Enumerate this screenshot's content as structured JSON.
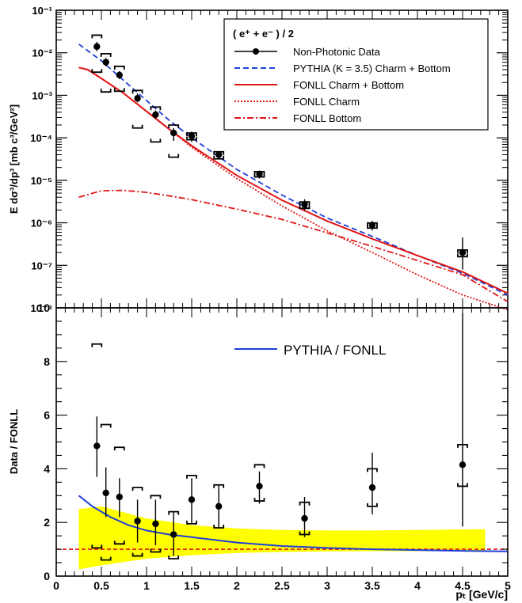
{
  "chart_data": [
    {
      "type": "scatter",
      "title": "",
      "ylabel": "E dσ³/dp³ [mb c³/GeV²]",
      "xlabel": "",
      "xlim": [
        0,
        5
      ],
      "ylim": [
        1e-08,
        0.1
      ],
      "yscale": "log",
      "ytick_labels": [
        "10⁻⁸",
        "10⁻⁷",
        "10⁻⁶",
        "10⁻⁵",
        "10⁻⁴",
        "10⁻³",
        "10⁻²",
        "10⁻¹"
      ],
      "legend": {
        "position": "top-right",
        "header": "( e⁺ + e⁻ ) / 2",
        "entries": [
          {
            "label": "Non-Photonic Data",
            "style": "marker",
            "color": "#000000"
          },
          {
            "label": "PYTHIA (K = 3.5) Charm + Bottom",
            "style": "dashed",
            "color": "#1f3fd9"
          },
          {
            "label": "FONLL Charm + Bottom",
            "style": "solid",
            "color": "#e01515"
          },
          {
            "label": "FONLL Charm",
            "style": "dotted",
            "color": "#e01515"
          },
          {
            "label": "FONLL Bottom",
            "style": "dashdot",
            "color": "#e01515"
          }
        ]
      },
      "series": [
        {
          "name": "Non-Photonic Data",
          "kind": "points",
          "color": "#000000",
          "x": [
            0.45,
            0.55,
            0.7,
            0.9,
            1.1,
            1.3,
            1.5,
            1.8,
            2.25,
            2.75,
            3.5,
            4.5
          ],
          "y": [
            0.014,
            0.006,
            0.003,
            0.00085,
            0.00035,
            0.00013,
            0.00011,
            4e-05,
            1.4e-05,
            2.7e-06,
            8.8e-07,
            2e-07
          ],
          "err_lo": [
            0.011,
            0.0048,
            0.0024,
            0.00068,
            0.00028,
            8.5e-05,
            8e-05,
            3.3e-05,
            1.1e-05,
            1.9e-06,
            6.6e-07,
            8e-08
          ],
          "err_hi": [
            0.018,
            0.0075,
            0.0037,
            0.0011,
            0.00044,
            0.00017,
            0.00014,
            4.8e-05,
            1.7e-05,
            3.6e-06,
            1.1e-06,
            4.5e-07
          ],
          "sys_lo": [
            0.0035,
            0.0012,
            0.00125,
            0.00017,
            8e-05,
            3.5e-05,
            9e-05,
            3.2e-05,
            1.2e-05,
            2.2e-06,
            7.5e-07,
            1.6e-07
          ],
          "sys_hi": [
            0.026,
            0.0095,
            0.0048,
            0.0013,
            0.00053,
            0.0002,
            0.00013,
            4.7e-05,
            1.6e-05,
            3.1e-06,
            9.9e-07,
            2.3e-07
          ]
        },
        {
          "name": "PYTHIA (K = 3.5) Charm + Bottom",
          "kind": "line",
          "dash": "dashed",
          "color": "#1f3fd9",
          "x": [
            0.25,
            0.5,
            0.75,
            1.0,
            1.25,
            1.5,
            2.0,
            2.5,
            3.0,
            3.5,
            4.0,
            4.5,
            5.0
          ],
          "y": [
            0.016,
            0.0065,
            0.0022,
            0.00075,
            0.00026,
            0.0001,
            1.8e-05,
            4.5e-06,
            1.3e-06,
            4.8e-07,
            1.7e-07,
            6.5e-08,
            2e-08
          ]
        },
        {
          "name": "FONLL Charm + Bottom",
          "kind": "line",
          "dash": "solid",
          "color": "#e01515",
          "x": [
            0.25,
            0.35,
            0.5,
            0.75,
            1.0,
            1.25,
            1.5,
            2.0,
            2.5,
            3.0,
            3.5,
            4.0,
            4.5,
            5.0
          ],
          "y": [
            0.0045,
            0.004,
            0.0025,
            0.0011,
            0.00042,
            0.00016,
            6.5e-05,
            1.3e-05,
            3.4e-06,
            1.1e-06,
            4.2e-07,
            1.7e-07,
            7e-08,
            2.2e-08
          ]
        },
        {
          "name": "FONLL Charm",
          "kind": "line",
          "dash": "dotted",
          "color": "#e01515",
          "x": [
            0.25,
            0.35,
            0.5,
            0.75,
            1.0,
            1.25,
            1.5,
            2.0,
            2.5,
            3.0,
            3.5,
            4.0,
            4.5,
            5.0
          ],
          "y": [
            0.0045,
            0.004,
            0.0025,
            0.0011,
            0.00042,
            0.00016,
            6e-05,
            1.1e-05,
            2.5e-06,
            6.5e-07,
            2e-07,
            6e-08,
            2e-08,
            9e-09
          ]
        },
        {
          "name": "FONLL Bottom",
          "kind": "line",
          "dash": "dashdot",
          "color": "#e01515",
          "x": [
            0.25,
            0.5,
            0.75,
            1.0,
            1.25,
            1.5,
            2.0,
            2.5,
            3.0,
            3.5,
            4.0,
            4.5,
            5.0
          ],
          "y": [
            4e-06,
            5.7e-06,
            5.8e-06,
            5.2e-06,
            4.3e-06,
            3.5e-06,
            2.1e-06,
            1.2e-06,
            5.8e-07,
            2.8e-07,
            1.3e-07,
            6e-08,
            1.4e-08
          ]
        }
      ]
    },
    {
      "type": "scatter",
      "title": "",
      "ylabel": "Data / FONLL",
      "xlabel": "pₜ [GeV/c]",
      "xlim": [
        0,
        5
      ],
      "ylim": [
        0,
        10
      ],
      "x_tick_labels": [
        "0",
        "0.5",
        "1",
        "1.5",
        "2",
        "2.5",
        "3",
        "3.5",
        "4",
        "4.5",
        "5"
      ],
      "y_tick_labels": [
        "0",
        "2",
        "4",
        "6",
        "8",
        "10"
      ],
      "legend": {
        "position": "top-center",
        "entries": [
          {
            "label": "PYTHIA / FONLL",
            "style": "solid",
            "color": "#1f3fd9"
          }
        ]
      },
      "reference_line": {
        "y": 1,
        "style": "dashed",
        "color": "#e01515"
      },
      "band": {
        "color": "#ffff00",
        "x": [
          0.25,
          0.5,
          1.0,
          1.5,
          2.0,
          2.5,
          3.0,
          3.5,
          4.0,
          4.5,
          4.75
        ],
        "upper": [
          2.5,
          2.6,
          2.15,
          1.9,
          1.78,
          1.72,
          1.7,
          1.7,
          1.72,
          1.74,
          1.75
        ],
        "lower": [
          0.25,
          0.4,
          0.65,
          0.78,
          0.86,
          0.9,
          0.92,
          0.93,
          0.93,
          0.93,
          0.93
        ]
      },
      "series": [
        {
          "name": "Data / FONLL",
          "kind": "points",
          "color": "#000000",
          "x": [
            0.45,
            0.55,
            0.7,
            0.9,
            1.1,
            1.3,
            1.5,
            1.8,
            2.25,
            2.75,
            3.5,
            4.5
          ],
          "y": [
            4.85,
            3.1,
            2.95,
            2.05,
            1.95,
            1.55,
            2.85,
            2.6,
            3.35,
            2.15,
            3.3,
            4.15
          ],
          "err_lo": [
            3.7,
            2.2,
            2.2,
            1.25,
            1.15,
            0.75,
            1.95,
            1.8,
            2.7,
            1.45,
            2.3,
            1.85
          ],
          "err_hi": [
            5.95,
            4.05,
            3.65,
            2.85,
            2.85,
            2.4,
            3.65,
            3.4,
            3.9,
            2.95,
            4.6,
            9.8
          ],
          "sys_lo": [
            1.05,
            0.6,
            1.2,
            0.75,
            0.9,
            0.65,
            1.95,
            1.8,
            2.8,
            1.55,
            2.6,
            3.35
          ],
          "sys_hi": [
            8.65,
            5.65,
            4.8,
            3.3,
            3.0,
            2.4,
            3.75,
            3.4,
            4.15,
            2.75,
            4.0,
            4.9
          ]
        },
        {
          "name": "PYTHIA / FONLL",
          "kind": "line",
          "dash": "solid",
          "color": "#1f3fd9",
          "x": [
            0.25,
            0.4,
            0.6,
            0.8,
            1.0,
            1.25,
            1.5,
            2.0,
            2.5,
            3.0,
            3.5,
            4.0,
            4.5,
            5.0
          ],
          "y": [
            3.0,
            2.6,
            2.2,
            1.9,
            1.7,
            1.55,
            1.45,
            1.25,
            1.12,
            1.05,
            1.0,
            0.97,
            0.94,
            0.92
          ]
        }
      ]
    }
  ]
}
